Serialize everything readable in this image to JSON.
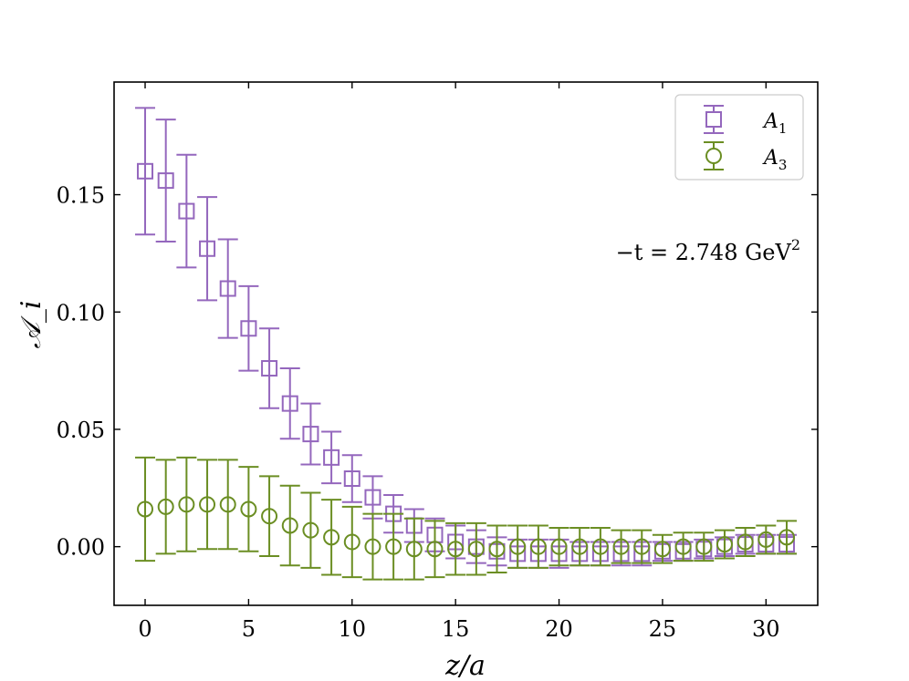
{
  "chart_data": {
    "type": "scatter",
    "title": "",
    "xlabel": "z/a",
    "ylabel": "𝒜_i",
    "xlim": [
      -1.5,
      32.5
    ],
    "ylim": [
      -0.025,
      0.198
    ],
    "xticks": [
      0,
      5,
      10,
      15,
      20,
      25,
      30
    ],
    "xtick_labels": [
      "0",
      "5",
      "10",
      "15",
      "20",
      "25",
      "30"
    ],
    "yticks": [
      0.0,
      0.05,
      0.1,
      0.15
    ],
    "ytick_labels": [
      "0.00",
      "0.05",
      "0.10",
      "0.15"
    ],
    "annotation": {
      "prefix": "−t = 2.748 GeV",
      "superscript": "2"
    },
    "legend_position": "top-right",
    "series": [
      {
        "name": "A",
        "subscript": "1",
        "marker": "square",
        "color": "#9467bd",
        "x_offset": 0.0,
        "x": [
          0,
          1,
          2,
          3,
          4,
          5,
          6,
          7,
          8,
          9,
          10,
          11,
          12,
          13,
          14,
          15,
          16,
          17,
          18,
          19,
          20,
          21,
          22,
          23,
          24,
          25,
          26,
          27,
          28,
          29,
          30,
          31
        ],
        "y": [
          0.16,
          0.156,
          0.143,
          0.127,
          0.11,
          0.093,
          0.076,
          0.061,
          0.048,
          0.038,
          0.029,
          0.021,
          0.014,
          0.009,
          0.005,
          0.002,
          0.0,
          -0.002,
          -0.003,
          -0.003,
          -0.003,
          -0.003,
          -0.003,
          -0.003,
          -0.003,
          -0.002,
          -0.002,
          -0.001,
          0.0,
          0.001,
          0.001,
          0.001
        ],
        "err": [
          0.027,
          0.026,
          0.024,
          0.022,
          0.021,
          0.018,
          0.017,
          0.015,
          0.013,
          0.011,
          0.01,
          0.009,
          0.008,
          0.007,
          0.007,
          0.007,
          0.007,
          0.006,
          0.006,
          0.006,
          0.006,
          0.005,
          0.005,
          0.005,
          0.005,
          0.004,
          0.004,
          0.004,
          0.004,
          0.004,
          0.004,
          0.004
        ]
      },
      {
        "name": "A",
        "subscript": "3",
        "marker": "circle",
        "color": "#6b8e23",
        "x_offset": 0.0,
        "x": [
          0,
          1,
          2,
          3,
          4,
          5,
          6,
          7,
          8,
          9,
          10,
          11,
          12,
          13,
          14,
          15,
          16,
          17,
          18,
          19,
          20,
          21,
          22,
          23,
          24,
          25,
          26,
          27,
          28,
          29,
          30,
          31
        ],
        "y": [
          0.016,
          0.017,
          0.018,
          0.018,
          0.018,
          0.016,
          0.013,
          0.009,
          0.007,
          0.004,
          0.002,
          0.0,
          0.0,
          -0.001,
          -0.001,
          -0.001,
          -0.001,
          -0.001,
          0.0,
          0.0,
          0.0,
          0.0,
          0.0,
          0.0,
          0.0,
          -0.001,
          0.0,
          0.0,
          0.001,
          0.002,
          0.003,
          0.004
        ],
        "err": [
          0.022,
          0.02,
          0.02,
          0.019,
          0.019,
          0.018,
          0.017,
          0.017,
          0.016,
          0.016,
          0.015,
          0.014,
          0.014,
          0.013,
          0.012,
          0.011,
          0.011,
          0.01,
          0.009,
          0.009,
          0.008,
          0.008,
          0.008,
          0.007,
          0.007,
          0.006,
          0.006,
          0.006,
          0.006,
          0.006,
          0.006,
          0.007
        ]
      }
    ]
  }
}
